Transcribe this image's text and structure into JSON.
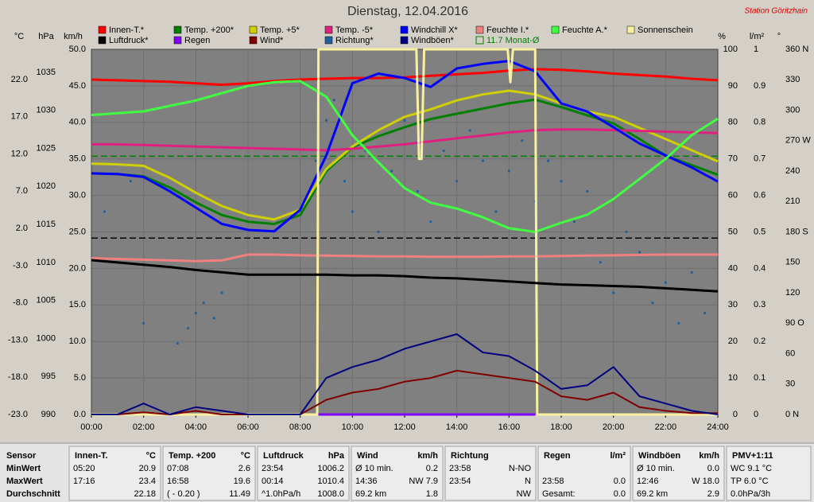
{
  "chart_data": {
    "type": "line",
    "title": "Dienstag, 12.04.2016",
    "subtitle": "Station Göritzhain",
    "x": [
      0,
      1,
      2,
      3,
      4,
      5,
      6,
      7,
      8,
      9,
      10,
      11,
      12,
      13,
      14,
      15,
      16,
      17,
      18,
      19,
      20,
      21,
      22,
      23,
      24
    ],
    "xlim": [
      0,
      24
    ],
    "xticks": [
      {
        "value": 0,
        "label": "00:00"
      },
      {
        "value": 2,
        "label": "02:00"
      },
      {
        "value": 4,
        "label": "04:00"
      },
      {
        "value": 6,
        "label": "06:00"
      },
      {
        "value": 8,
        "label": "08:00"
      },
      {
        "value": 10,
        "label": "10:00"
      },
      {
        "value": 12,
        "label": "12:00"
      },
      {
        "value": 14,
        "label": "14:00"
      },
      {
        "value": 16,
        "label": "16:00"
      },
      {
        "value": 18,
        "label": "18:00"
      },
      {
        "value": 20,
        "label": "20:00"
      },
      {
        "value": 22,
        "label": "22:00"
      },
      {
        "value": 24,
        "label": "24:00"
      }
    ],
    "grid": true,
    "axes": [
      {
        "unit": "°C",
        "lim": [
          -23,
          26.06
        ],
        "ticks": [
          {
            "value": -23,
            "label": "-23.0"
          },
          {
            "value": -18,
            "label": "-18.0"
          },
          {
            "value": -13,
            "label": "-13.0"
          },
          {
            "value": -8,
            "label": "-8.0"
          },
          {
            "value": -3,
            "label": "-3.0"
          },
          {
            "value": 2,
            "label": "2.0"
          },
          {
            "value": 7,
            "label": "7.0"
          },
          {
            "value": 12,
            "label": "12.0"
          },
          {
            "value": 17,
            "label": "17.0"
          },
          {
            "value": 22,
            "label": "22.0"
          }
        ]
      },
      {
        "unit": "hPa",
        "lim": [
          990,
          1038.03
        ],
        "ticks": [
          990,
          995,
          1000,
          1005,
          1010,
          1015,
          1020,
          1025,
          1030,
          1035
        ]
      },
      {
        "unit": "km/h",
        "lim": [
          0,
          50
        ],
        "ticks": [
          {
            "value": 0,
            "label": "0.0"
          },
          {
            "value": 5,
            "label": "5.0"
          },
          {
            "value": 10,
            "label": "10.0"
          },
          {
            "value": 15,
            "label": "15.0"
          },
          {
            "value": 20,
            "label": "20.0"
          },
          {
            "value": 25,
            "label": "25.0"
          },
          {
            "value": 30,
            "label": "30.0"
          },
          {
            "value": 35,
            "label": "35.0"
          },
          {
            "value": 40,
            "label": "40.0"
          },
          {
            "value": 45,
            "label": "45.0"
          },
          {
            "value": 50,
            "label": "50.0"
          }
        ]
      },
      {
        "unit": "%",
        "lim": [
          0,
          100
        ],
        "ticks": [
          0,
          10,
          20,
          30,
          40,
          50,
          60,
          70,
          80,
          90,
          100
        ]
      },
      {
        "unit": "l/m²",
        "lim": [
          0,
          1
        ],
        "ticks": [
          0,
          0.1,
          0.2,
          0.3,
          0.4,
          0.5,
          0.6,
          0.7,
          0.8,
          0.9,
          1
        ]
      },
      {
        "unit": "°",
        "lim": [
          0,
          360
        ],
        "ticks": [
          {
            "value": 0,
            "label": "0  N"
          },
          {
            "value": 30,
            "label": "30"
          },
          {
            "value": 60,
            "label": "60"
          },
          {
            "value": 90,
            "label": "90  O"
          },
          {
            "value": 120,
            "label": "120"
          },
          {
            "value": 150,
            "label": "150"
          },
          {
            "value": 180,
            "label": "180  S"
          },
          {
            "value": 210,
            "label": "210"
          },
          {
            "value": 240,
            "label": "240"
          },
          {
            "value": 270,
            "label": "270  W"
          },
          {
            "value": 300,
            "label": "300"
          },
          {
            "value": 330,
            "label": "330"
          },
          {
            "value": 360,
            "label": "360  N"
          }
        ]
      }
    ],
    "series": [
      {
        "name": "Innen-T.*",
        "color": "#ff0000",
        "axis": 0,
        "values": [
          22.0,
          21.9,
          21.8,
          21.7,
          21.5,
          21.3,
          21.5,
          21.8,
          22.0,
          22.1,
          22.2,
          22.2,
          22.3,
          22.5,
          22.7,
          22.9,
          23.2,
          23.4,
          23.3,
          23.1,
          22.8,
          22.6,
          22.4,
          22.1,
          21.9
        ]
      },
      {
        "name": "Temp. +200*",
        "color": "#008000",
        "axis": 0,
        "values": [
          9.4,
          9.3,
          9.0,
          7.5,
          5.5,
          3.8,
          2.9,
          2.6,
          3.8,
          9.7,
          12.9,
          14.4,
          15.6,
          16.7,
          17.4,
          18.1,
          18.8,
          19.3,
          18.3,
          17.2,
          16.1,
          14.0,
          11.8,
          10.5,
          9.2
        ]
      },
      {
        "name": "Temp. +5*",
        "color": "#d0d000",
        "axis": 0,
        "values": [
          10.7,
          10.6,
          10.4,
          8.8,
          6.8,
          5.0,
          3.8,
          3.2,
          4.5,
          10.0,
          13.0,
          15.2,
          17.0,
          18.0,
          19.2,
          20.0,
          20.5,
          20.0,
          18.8,
          17.7,
          17.0,
          15.5,
          14.0,
          12.5,
          11.0
        ]
      },
      {
        "name": "Temp. -5*",
        "color": "#e0207f",
        "axis": 0,
        "values": [
          13.3,
          13.3,
          13.2,
          13.1,
          13.0,
          12.9,
          12.8,
          12.7,
          12.6,
          12.5,
          12.7,
          13.0,
          13.3,
          13.7,
          14.1,
          14.5,
          14.9,
          15.2,
          15.3,
          15.3,
          15.2,
          15.1,
          15.0,
          14.9,
          14.8
        ]
      },
      {
        "name": "Windchill X*",
        "color": "#0000ff",
        "axis": 0,
        "values": [
          9.4,
          9.3,
          8.9,
          7.0,
          4.8,
          2.6,
          1.8,
          1.6,
          4.5,
          11.8,
          21.5,
          22.8,
          22.2,
          21.0,
          23.5,
          24.1,
          24.5,
          23.1,
          18.8,
          17.7,
          15.6,
          13.4,
          11.8,
          10.2,
          8.3
        ]
      },
      {
        "name": "Feuchte I.*",
        "color": "#f08080",
        "axis": 3,
        "values": [
          42.8,
          42.6,
          42.4,
          42.2,
          42.0,
          42.2,
          43.8,
          43.8,
          43.6,
          43.5,
          43.4,
          43.3,
          43.3,
          43.2,
          43.2,
          43.2,
          43.3,
          43.3,
          43.4,
          43.5,
          43.6,
          43.7,
          43.8,
          43.8,
          43.8
        ]
      },
      {
        "name": "Feuchte A.*",
        "color": "#40ff40",
        "axis": 3,
        "values": [
          82,
          82.5,
          83,
          84.5,
          86,
          88,
          90,
          91,
          91.3,
          87,
          76.5,
          69,
          62,
          58,
          56.4,
          54,
          51,
          50,
          52.5,
          54.7,
          59,
          64.5,
          70,
          76.5,
          81
        ]
      },
      {
        "name": "Sonnenschein",
        "color": "#f8f0a0",
        "axis": 3,
        "x": [
          0,
          8.65,
          8.7,
          12.45,
          12.55,
          12.65,
          12.75,
          15.95,
          16.05,
          16.15,
          17.0,
          17.08,
          24
        ],
        "values": [
          0,
          0,
          100,
          100,
          70,
          70,
          100,
          100,
          91,
          100,
          100,
          0,
          0
        ]
      },
      {
        "name": "Luftdruck*",
        "color": "#000000",
        "axis": 1,
        "values": [
          1010.3,
          1010.0,
          1009.7,
          1009.4,
          1009.0,
          1008.7,
          1008.4,
          1008.4,
          1008.4,
          1008.4,
          1008.3,
          1008.3,
          1008.2,
          1008.0,
          1007.9,
          1007.7,
          1007.5,
          1007.3,
          1007.1,
          1007.0,
          1006.9,
          1006.8,
          1006.6,
          1006.4,
          1006.2
        ]
      },
      {
        "name": "Regen",
        "color": "#8000ff",
        "axis": 4,
        "x": [
          8.7,
          17.0
        ],
        "values": [
          0,
          0
        ]
      },
      {
        "name": "Wind*",
        "color": "#800000",
        "axis": 2,
        "values": [
          0,
          0,
          0.3,
          0,
          0.5,
          0,
          0,
          0,
          0,
          2.0,
          3.0,
          3.5,
          4.5,
          5.0,
          6.0,
          5.5,
          5.0,
          4.5,
          2.5,
          2.0,
          3.0,
          1.0,
          0.5,
          0.2,
          0.2
        ]
      },
      {
        "name": "Richtung*",
        "color": "#2060a0",
        "axis": 5,
        "kind": "dots",
        "x": [
          0.5,
          1.5,
          2.0,
          3.3,
          3.7,
          4.0,
          4.3,
          4.7,
          5.0,
          8.6,
          9.0,
          9.3,
          9.7,
          10.0,
          10.5,
          11.0,
          11.5,
          12.0,
          12.5,
          13.0,
          13.5,
          14.0,
          14.5,
          15.0,
          15.5,
          16.0,
          16.5,
          17.0,
          17.5,
          18.0,
          18.5,
          19.0,
          19.5,
          20.0,
          20.5,
          21.0,
          21.5,
          22.0,
          22.5,
          23.0,
          23.5
        ],
        "values": [
          200,
          230,
          90,
          70,
          85,
          100,
          110,
          95,
          120,
          250,
          290,
          310,
          230,
          200,
          260,
          180,
          240,
          290,
          220,
          190,
          260,
          230,
          280,
          250,
          200,
          240,
          270,
          210,
          250,
          230,
          190,
          220,
          150,
          120,
          180,
          160,
          110,
          130,
          90,
          140,
          100
        ]
      },
      {
        "name": "Windböen*",
        "color": "#000080",
        "axis": 2,
        "values": [
          0,
          0,
          1.5,
          0,
          1.0,
          0.5,
          0,
          0,
          0,
          5.0,
          6.5,
          7.5,
          9.0,
          10.0,
          11.0,
          8.5,
          8.0,
          6.0,
          3.5,
          4.0,
          6.5,
          2.5,
          1.5,
          0.5,
          0
        ]
      }
    ],
    "reference_lines": [
      {
        "name": "11.7 Monat-Ø",
        "color": "#008000",
        "axis": 0,
        "value": 11.7
      },
      {
        "color": "#000000",
        "axis": 1,
        "value": 1013.2
      }
    ]
  },
  "table": {
    "row_labels": [
      "Sensor",
      "MinWert",
      "MaxWert",
      "Durchschnitt"
    ],
    "columns": [
      {
        "title": "Innen-T.",
        "unit": "°C",
        "rows": [
          [
            "05:20",
            "20.9"
          ],
          [
            "17:16",
            "23.4"
          ],
          [
            null,
            "22.18"
          ]
        ]
      },
      {
        "title": "Temp. +200",
        "unit": "°C",
        "rows": [
          [
            "07:08",
            "2.6"
          ],
          [
            "16:58",
            "19.6"
          ],
          [
            "( - 0.20 )",
            "11.49"
          ]
        ]
      },
      {
        "title": "Luftdruck",
        "unit": "hPa",
        "rows": [
          [
            "23:54",
            "1006.2"
          ],
          [
            "00:14",
            "1010.4"
          ],
          [
            "^1.0hPa/h",
            "1008.0"
          ]
        ]
      },
      {
        "title": "Wind",
        "unit": "km/h",
        "rows": [
          [
            "Ø 10 min.",
            "0.2"
          ],
          [
            "14:36",
            "NW 7.9"
          ],
          [
            "69.2 km",
            "1.8"
          ]
        ]
      },
      {
        "title": "Richtung",
        "rows": [
          [
            "23:58",
            "N-NO"
          ],
          [
            "23:54",
            "N"
          ],
          [
            null,
            "NW"
          ]
        ]
      },
      {
        "title": "Regen",
        "unit": "l/m²",
        "rows": [
          [
            null,
            null
          ],
          [
            "23:58",
            "0.0"
          ],
          [
            "Gesamt:",
            "0.0"
          ]
        ]
      },
      {
        "title": "Windböen",
        "unit": "km/h",
        "rows": [
          [
            "Ø 10 min.",
            "0.0"
          ],
          [
            "12:46",
            "W 18.0"
          ],
          [
            "69.2 km",
            "2.9"
          ]
        ]
      },
      {
        "title": "PMV+1:11",
        "rows": [
          [
            "WC 9.1 °C"
          ],
          [
            "TP 6.0 °C"
          ],
          [
            "0.0hPa/3h"
          ]
        ]
      }
    ]
  }
}
